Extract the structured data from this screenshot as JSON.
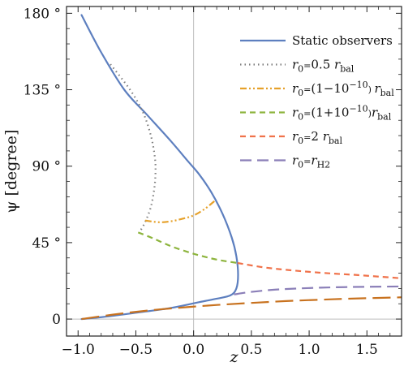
{
  "chart_data": {
    "type": "line",
    "xlabel": "z",
    "ylabel": "ψ [degree]",
    "xlim": [
      -1.1,
      1.8
    ],
    "ylim": [
      -10,
      184
    ],
    "x_ticks": [
      -1.0,
      -0.5,
      0.0,
      0.5,
      1.0,
      1.5
    ],
    "x_tick_labels": [
      "−1.0",
      "−0.5",
      "0.0",
      "0.5",
      "1.0",
      "1.5"
    ],
    "y_ticks": [
      0,
      45,
      90,
      135,
      180
    ],
    "y_tick_labels": [
      "0",
      "45 °",
      "90 °",
      "135 °",
      "180 °"
    ],
    "x_minor_step": 0.1,
    "y_minor_step": 9,
    "reference_lines": {
      "x": 0,
      "y": 0
    },
    "legend_position": "top-right",
    "legend": [
      {
        "pre": "Static observers",
        "sub": "",
        "post": ""
      },
      {
        "pre": "r",
        "sub": "0",
        "post": "=0.5 r",
        "sub2": "bal"
      },
      {
        "pre": "r",
        "sub": "0",
        "post": "=(1−10",
        "sup": "−10",
        "post2": ") r",
        "sub2": "bal"
      },
      {
        "pre": "r",
        "sub": "0",
        "post": "=(1+10",
        "sup": "−10",
        "post2": ")r",
        "sub2": "bal"
      },
      {
        "pre": "r",
        "sub": "0",
        "post": "=2 r",
        "sub2": "bal"
      },
      {
        "pre": "r",
        "sub": "0",
        "post": "=r",
        "sub2": "H2"
      }
    ],
    "series": [
      {
        "color": "#5d7fbf",
        "dash": "solid",
        "width": 2.2,
        "x": [
          -0.97,
          -0.8,
          -0.6,
          -0.4,
          -0.2,
          -0.05,
          0.05,
          0.15,
          0.25,
          0.33,
          0.37,
          0.385,
          0.37,
          0.32,
          0.2,
          0.05,
          -0.2,
          -0.5,
          -0.75,
          -0.97
        ],
        "y": [
          179,
          157,
          135,
          120,
          105,
          93,
          85,
          75,
          62,
          48,
          37,
          26,
          18,
          14,
          12,
          10,
          6.5,
          3.7,
          1.5,
          0
        ]
      },
      {
        "color": "#7f7f7f",
        "dash": "dotted",
        "width": 2.2,
        "x": [
          -0.72,
          -0.55,
          -0.44,
          -0.37,
          -0.335,
          -0.33,
          -0.34,
          -0.37,
          -0.42,
          -0.47
        ],
        "y": [
          150,
          135,
          122,
          108,
          95,
          86,
          77,
          66,
          57,
          51
        ]
      },
      {
        "color": "#e6a12a",
        "dash": "dashdotdot",
        "width": 2.2,
        "x": [
          -0.42,
          -0.3,
          -0.2,
          -0.1,
          0.0,
          0.1,
          0.19
        ],
        "y": [
          58,
          57,
          57.5,
          59,
          61,
          65,
          70
        ]
      },
      {
        "color": "#8db43d",
        "dash": "dashed",
        "width": 2.2,
        "x": [
          -0.48,
          -0.35,
          -0.2,
          -0.05,
          0.05,
          0.2,
          0.38
        ],
        "y": [
          51,
          47.5,
          43,
          39.5,
          37.5,
          35,
          33
        ]
      },
      {
        "color": "#f0724a",
        "dash": "dashed",
        "width": 2.2,
        "x": [
          0.38,
          0.6,
          0.8,
          1.0,
          1.2,
          1.4,
          1.6,
          1.8
        ],
        "y": [
          33,
          30.5,
          29,
          27.8,
          26.8,
          26,
          25,
          24
        ]
      },
      {
        "color": "#8b7fb8",
        "dash": "longdash",
        "width": 2.2,
        "x": [
          0.35,
          0.5,
          0.7,
          0.9,
          1.1,
          1.3,
          1.5,
          1.8
        ],
        "y": [
          14.5,
          16,
          17.3,
          18,
          18.5,
          18.8,
          19,
          19.2
        ]
      },
      {
        "color": "#c8721f",
        "dash": "longlongdash",
        "width": 2.2,
        "x": [
          -0.97,
          -0.7,
          -0.4,
          -0.1,
          0.2,
          0.5,
          0.8,
          1.1,
          1.4,
          1.8
        ],
        "y": [
          0,
          2.6,
          5,
          6.8,
          8.3,
          9.5,
          10.6,
          11.4,
          12.1,
          12.8
        ]
      }
    ]
  }
}
